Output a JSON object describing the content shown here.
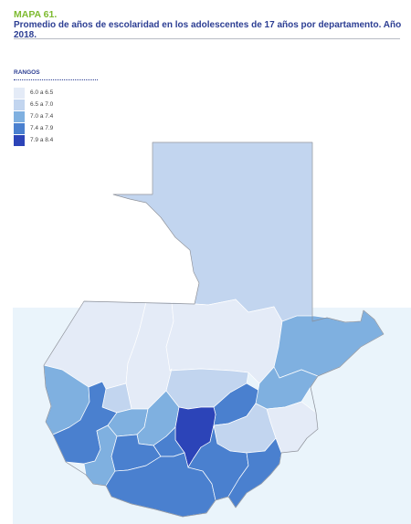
{
  "header": {
    "map_label": "MAPA 61.",
    "title": "Promedio de años de escolaridad en los adolescentes de 17 años por departamento. Año 2018."
  },
  "legend": {
    "title": "RANGOS",
    "items": [
      {
        "label": "6.0 a 6.5",
        "color": "#e4ebf7"
      },
      {
        "label": "6.5 a 7.0",
        "color": "#c2d5ef"
      },
      {
        "label": "7.0 a 7.4",
        "color": "#7fb0e0"
      },
      {
        "label": "7.4 a 7.9",
        "color": "#4a80cf"
      },
      {
        "label": "7.9 a 8.4",
        "color": "#2c44b8"
      }
    ]
  },
  "map": {
    "background_color": "#eaf4fb",
    "regions": [
      {
        "region": "peten",
        "range_index": 1
      },
      {
        "region": "huehuetenango",
        "range_index": 0
      },
      {
        "region": "quiche",
        "range_index": 0
      },
      {
        "region": "alta-verapaz",
        "range_index": 0
      },
      {
        "region": "izabal",
        "range_index": 2
      },
      {
        "region": "san-marcos",
        "range_index": 2
      },
      {
        "region": "totonicapan",
        "range_index": 1
      },
      {
        "region": "quetzaltenango",
        "range_index": 3
      },
      {
        "region": "solola",
        "range_index": 2
      },
      {
        "region": "chimaltenango",
        "range_index": 2
      },
      {
        "region": "baja-verapaz",
        "range_index": 1
      },
      {
        "region": "el-progreso",
        "range_index": 3
      },
      {
        "region": "zacapa",
        "range_index": 2
      },
      {
        "region": "guatemala",
        "range_index": 4
      },
      {
        "region": "chiquimula",
        "range_index": 0
      },
      {
        "region": "jalapa",
        "range_index": 1
      },
      {
        "region": "sacatepequez",
        "range_index": 3
      },
      {
        "region": "retalhuleu",
        "range_index": 2
      },
      {
        "region": "suchitepequez",
        "range_index": 3
      },
      {
        "region": "escuintla",
        "range_index": 3
      },
      {
        "region": "santa-rosa",
        "range_index": 3
      },
      {
        "region": "jutiapa",
        "range_index": 3
      }
    ]
  }
}
